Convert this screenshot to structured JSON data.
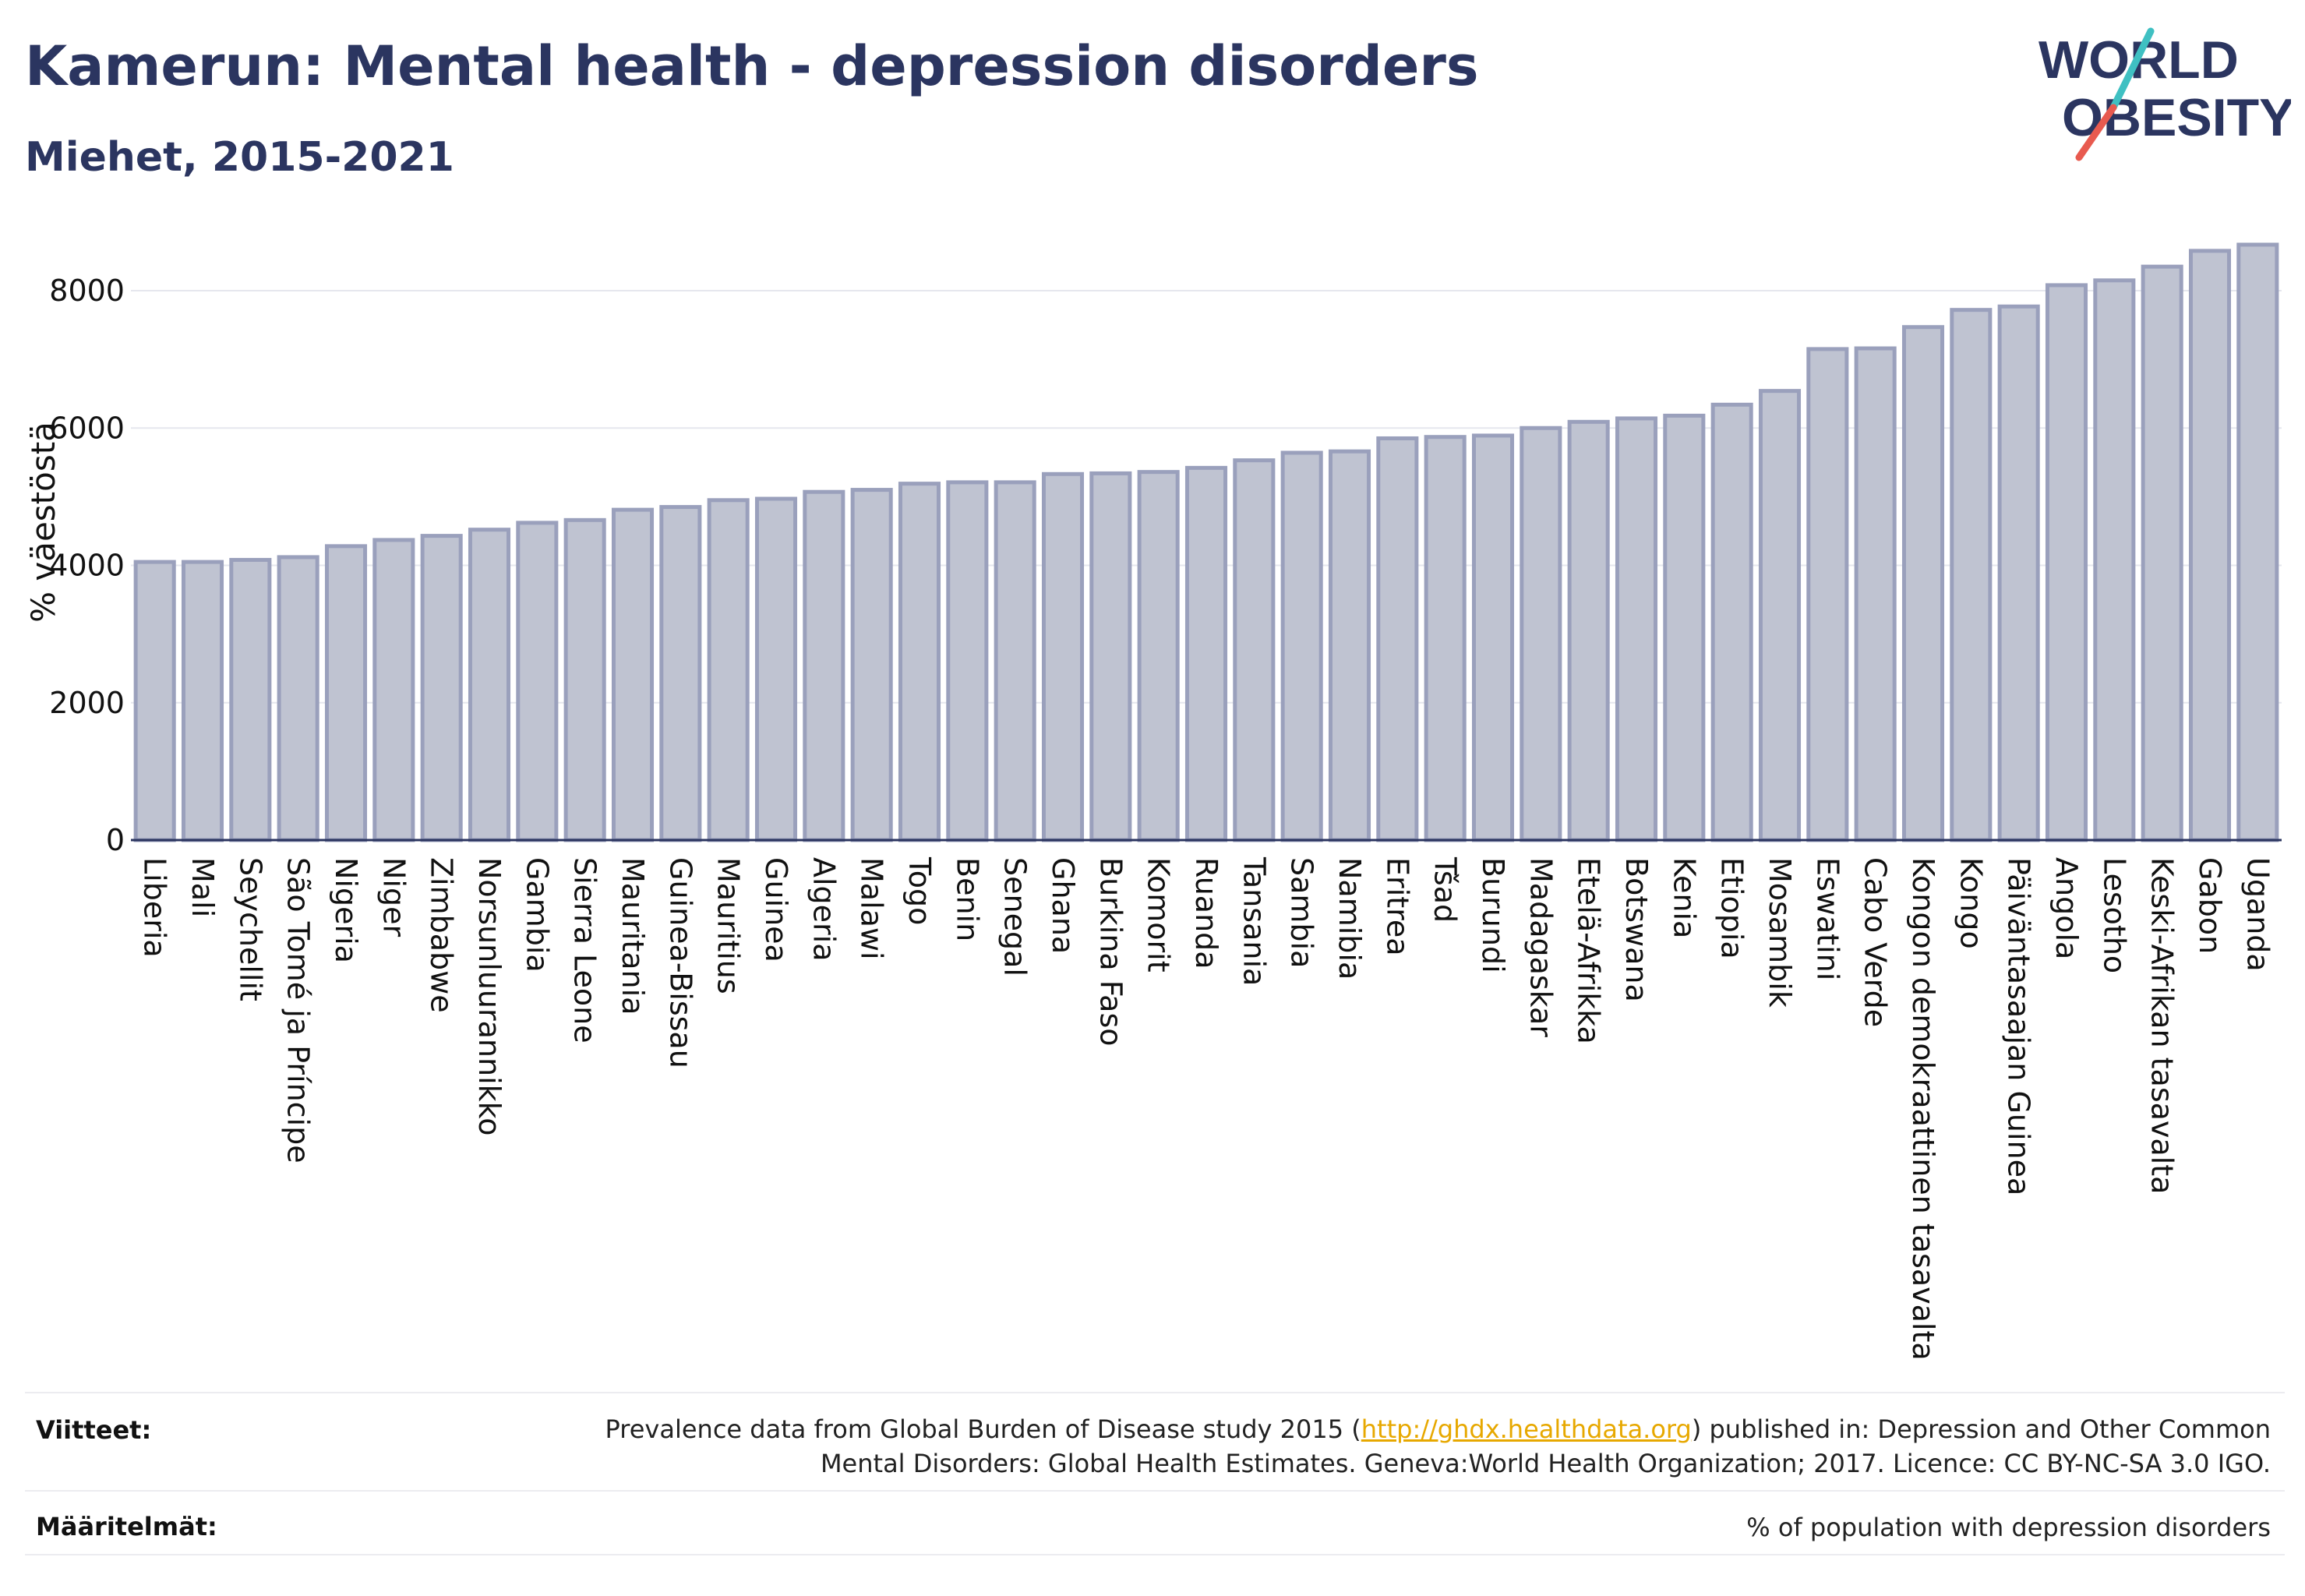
{
  "header": {
    "title": "Kamerun: Mental health - depression disorders",
    "subtitle": "Miehet, 2015-2021"
  },
  "logo": {
    "line1": "WORLD",
    "line2": "OBESITY",
    "text_color": "#2b3560",
    "slash_colors": [
      "#3fc0c2",
      "#e85a4f"
    ]
  },
  "chart_data": {
    "type": "bar",
    "ylabel": "% väestöstä",
    "xlabel": "",
    "ylim": [
      0,
      9000
    ],
    "yticks": [
      0,
      2000,
      4000,
      6000,
      8000
    ],
    "grid": true,
    "bar_fill": "#bfc3d1",
    "bar_stroke": "#9aa0bc",
    "categories": [
      "Liberia",
      "Mali",
      "Seychellit",
      "São Tomé ja Príncipe",
      "Nigeria",
      "Niger",
      "Zimbabwe",
      "Norsunluurannikko",
      "Gambia",
      "Sierra Leone",
      "Mauritania",
      "Guinea-Bissau",
      "Mauritius",
      "Guinea",
      "Algeria",
      "Malawi",
      "Togo",
      "Benin",
      "Senegal",
      "Ghana",
      "Burkina Faso",
      "Komorit",
      "Ruanda",
      "Tansania",
      "Sambia",
      "Namibia",
      "Eritrea",
      "Tšad",
      "Burundi",
      "Madagaskar",
      "Etelä-Afrikka",
      "Botswana",
      "Kenia",
      "Etiopia",
      "Mosambik",
      "Eswatini",
      "Cabo Verde",
      "Kongon demokraattinen tasavalta",
      "Kongo",
      "Päiväntasaajan Guinea",
      "Angola",
      "Lesotho",
      "Keski-Afrikan tasavalta",
      "Gabon",
      "Uganda"
    ],
    "values": [
      4050,
      4050,
      4080,
      4120,
      4280,
      4370,
      4430,
      4520,
      4620,
      4660,
      4810,
      4850,
      4950,
      4970,
      5070,
      5100,
      5190,
      5210,
      5210,
      5330,
      5340,
      5360,
      5420,
      5530,
      5640,
      5660,
      5850,
      5870,
      5890,
      6000,
      6090,
      6140,
      6180,
      6340,
      6540,
      7150,
      7160,
      7470,
      7720,
      7770,
      8080,
      8150,
      8350,
      8580,
      8670
    ]
  },
  "footer": {
    "sources_label": "Viitteet:",
    "sources_text_before": "Prevalence data from Global Burden of Disease study 2015 (",
    "sources_link": "http://ghdx.healthdata.org",
    "sources_text_after": ") published in: Depression and Other Common",
    "sources_line2": "Mental Disorders: Global Health Estimates. Geneva:World Health Organization; 2017. Licence: CC BY-NC-SA 3.0 IGO.",
    "definitions_label": "Määritelmät:",
    "definitions_text": "% of population with depression disorders"
  }
}
